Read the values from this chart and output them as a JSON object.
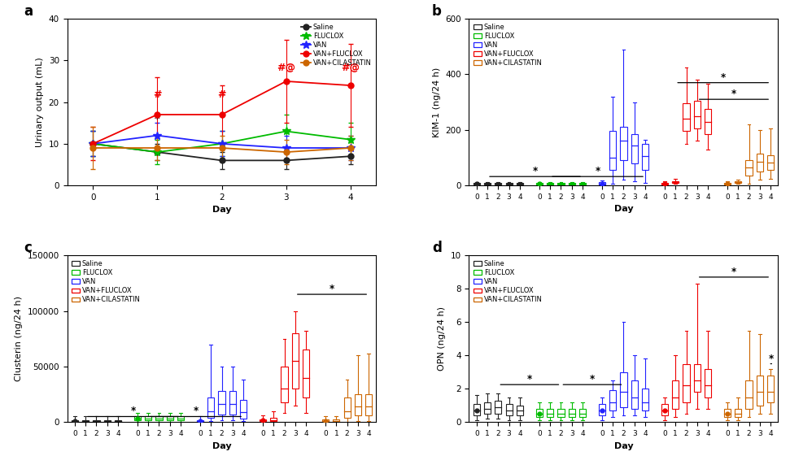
{
  "group_names": [
    "Saline",
    "FLUCLOX",
    "VAN",
    "VAN+FLUCLOX",
    "VAN+CILASTATIN"
  ],
  "colors": [
    "#222222",
    "#00bb00",
    "#2222ff",
    "#ee0000",
    "#cc6600"
  ],
  "bg_color": "#ffffff",
  "panel_a": {
    "ylabel": "Urinary output (mL)",
    "xlabel": "Day",
    "ylim": [
      0,
      40
    ],
    "yticks": [
      0,
      10,
      20,
      30,
      40
    ],
    "days": [
      0,
      1,
      2,
      3,
      4
    ],
    "means": {
      "Saline": [
        10,
        8,
        6,
        6,
        7
      ],
      "FLUCLOX": [
        10,
        8,
        10,
        13,
        11
      ],
      "VAN": [
        10,
        12,
        10,
        9,
        9
      ],
      "VAN+FLUCLOX": [
        10,
        17,
        17,
        25,
        24
      ],
      "VAN+CILASTATIN": [
        9,
        9,
        9,
        8,
        9
      ]
    },
    "errs": {
      "Saline": [
        3,
        2,
        2,
        2,
        2
      ],
      "FLUCLOX": [
        3,
        3,
        3,
        4,
        4
      ],
      "VAN": [
        3,
        3,
        3,
        3,
        3
      ],
      "VAN+FLUCLOX": [
        4,
        9,
        7,
        10,
        10
      ],
      "VAN+CILASTATIN": [
        5,
        3,
        3,
        3,
        3
      ]
    }
  },
  "panel_b": {
    "ylabel": "KIM-1 (ng/24 h)",
    "xlabel": "Day",
    "ylim": [
      0,
      600
    ],
    "yticks": [
      0,
      200,
      400,
      600
    ],
    "boxes": {
      "Saline": [
        [
          2,
          4,
          7,
          9,
          13
        ],
        [
          2,
          4,
          7,
          9,
          13
        ],
        [
          2,
          4,
          7,
          9,
          13
        ],
        [
          2,
          4,
          7,
          9,
          13
        ],
        [
          2,
          4,
          7,
          9,
          13
        ]
      ],
      "FLUCLOX": [
        [
          2,
          4,
          6,
          9,
          12
        ],
        [
          2,
          4,
          6,
          9,
          12
        ],
        [
          2,
          4,
          6,
          9,
          12
        ],
        [
          2,
          4,
          6,
          9,
          12
        ],
        [
          2,
          4,
          6,
          9,
          12
        ]
      ],
      "VAN": [
        [
          2,
          4,
          7,
          12,
          18
        ],
        [
          5,
          55,
          100,
          195,
          320
        ],
        [
          20,
          90,
          160,
          210,
          490
        ],
        [
          15,
          80,
          145,
          185,
          300
        ],
        [
          10,
          55,
          105,
          150,
          165
        ]
      ],
      "VAN+FLUCLOX": [
        [
          2,
          4,
          7,
          10,
          16
        ],
        [
          5,
          8,
          12,
          16,
          25
        ],
        [
          150,
          195,
          240,
          295,
          425
        ],
        [
          160,
          205,
          250,
          305,
          380
        ],
        [
          130,
          185,
          230,
          275,
          365
        ]
      ],
      "VAN+CILASTATIN": [
        [
          2,
          4,
          7,
          10,
          14
        ],
        [
          5,
          8,
          12,
          16,
          22
        ],
        [
          5,
          35,
          65,
          90,
          220
        ],
        [
          20,
          50,
          85,
          115,
          200
        ],
        [
          25,
          55,
          82,
          108,
          205
        ]
      ]
    }
  },
  "panel_c": {
    "ylabel": "Clusterin (ng/24 h)",
    "xlabel": "Day",
    "ylim": [
      0,
      150000
    ],
    "yticks": [
      0,
      50000,
      100000,
      150000
    ],
    "boxes": {
      "Saline": [
        [
          100,
          500,
          900,
          1800,
          5000
        ],
        [
          100,
          500,
          900,
          1800,
          5000
        ],
        [
          100,
          500,
          900,
          1800,
          5000
        ],
        [
          100,
          500,
          900,
          1800,
          5000
        ],
        [
          100,
          500,
          900,
          1800,
          5000
        ]
      ],
      "FLUCLOX": [
        [
          500,
          1500,
          3000,
          5500,
          8000
        ],
        [
          500,
          1500,
          3000,
          5500,
          8000
        ],
        [
          500,
          1500,
          3000,
          5500,
          8000
        ],
        [
          500,
          1500,
          3000,
          5500,
          8000
        ],
        [
          500,
          1500,
          3000,
          5500,
          8000
        ]
      ],
      "VAN": [
        [
          200,
          700,
          1200,
          2000,
          5000
        ],
        [
          800,
          4000,
          10000,
          22000,
          70000
        ],
        [
          1500,
          7000,
          16000,
          28000,
          50000
        ],
        [
          1500,
          7000,
          16000,
          28000,
          50000
        ],
        [
          700,
          3000,
          9000,
          20000,
          38000
        ]
      ],
      "VAN+FLUCLOX": [
        [
          300,
          800,
          1500,
          2500,
          6000
        ],
        [
          500,
          1000,
          2000,
          4000,
          10000
        ],
        [
          8000,
          18000,
          30000,
          50000,
          75000
        ],
        [
          15000,
          30000,
          55000,
          80000,
          100000
        ],
        [
          8000,
          22000,
          40000,
          65000,
          82000
        ]
      ],
      "VAN+CILASTATIN": [
        [
          200,
          600,
          1200,
          2500,
          5000
        ],
        [
          200,
          600,
          1200,
          2500,
          5000
        ],
        [
          500,
          4000,
          10000,
          22000,
          38000
        ],
        [
          1000,
          6000,
          14000,
          25000,
          60000
        ],
        [
          1000,
          6000,
          14000,
          25000,
          62000
        ]
      ]
    }
  },
  "panel_d": {
    "ylabel": "OPN (ng/24 h)",
    "xlabel": "Day",
    "ylim": [
      0,
      10
    ],
    "yticks": [
      0,
      2,
      4,
      6,
      8,
      10
    ],
    "boxes": {
      "Saline": [
        [
          0.1,
          0.4,
          0.7,
          1.1,
          1.6
        ],
        [
          0.2,
          0.5,
          0.8,
          1.2,
          1.7
        ],
        [
          0.2,
          0.5,
          0.9,
          1.3,
          1.7
        ],
        [
          0.1,
          0.4,
          0.7,
          1.1,
          1.5
        ],
        [
          0.1,
          0.4,
          0.7,
          1.0,
          1.5
        ]
      ],
      "FLUCLOX": [
        [
          0.1,
          0.3,
          0.5,
          0.8,
          1.2
        ],
        [
          0.1,
          0.3,
          0.5,
          0.8,
          1.2
        ],
        [
          0.1,
          0.3,
          0.5,
          0.8,
          1.2
        ],
        [
          0.1,
          0.3,
          0.5,
          0.8,
          1.2
        ],
        [
          0.1,
          0.3,
          0.5,
          0.8,
          1.2
        ]
      ],
      "VAN": [
        [
          0.1,
          0.4,
          0.7,
          1.1,
          1.5
        ],
        [
          0.3,
          0.7,
          1.2,
          1.9,
          2.5
        ],
        [
          0.4,
          0.9,
          1.8,
          3.0,
          6.0
        ],
        [
          0.4,
          0.8,
          1.5,
          2.5,
          4.0
        ],
        [
          0.3,
          0.7,
          1.2,
          2.0,
          3.8
        ]
      ],
      "VAN+FLUCLOX": [
        [
          0.1,
          0.4,
          0.7,
          1.1,
          1.5
        ],
        [
          0.3,
          0.8,
          1.5,
          2.5,
          4.0
        ],
        [
          0.5,
          1.2,
          2.2,
          3.5,
          5.5
        ],
        [
          0.8,
          1.8,
          2.5,
          3.5,
          8.3
        ],
        [
          0.8,
          1.5,
          2.2,
          3.2,
          5.5
        ]
      ],
      "VAN+CILASTATIN": [
        [
          0.1,
          0.3,
          0.5,
          0.8,
          1.2
        ],
        [
          0.1,
          0.3,
          0.5,
          0.8,
          1.5
        ],
        [
          0.3,
          0.8,
          1.5,
          2.5,
          5.5
        ],
        [
          0.5,
          1.0,
          1.8,
          2.8,
          5.3
        ],
        [
          0.5,
          1.2,
          1.8,
          2.8,
          3.2
        ]
      ]
    }
  }
}
